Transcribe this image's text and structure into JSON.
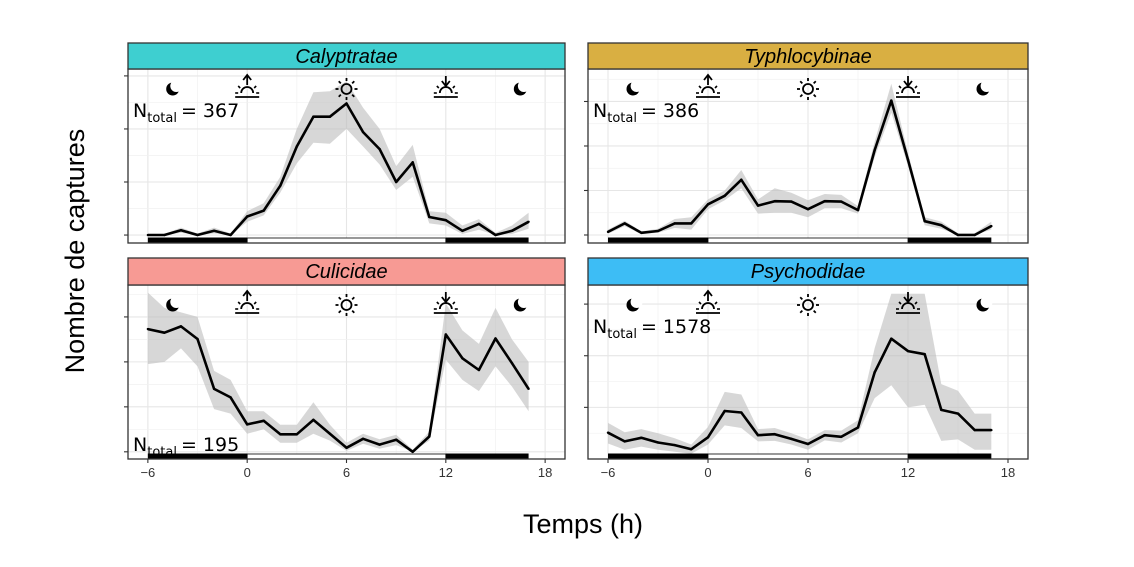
{
  "chart_data": {
    "type": "line",
    "layout": "facet-2x2",
    "xlabel": "Temps (h)",
    "ylabel": "Nombre de captures",
    "x": [
      -6,
      -5,
      -4,
      -3,
      -2,
      -1,
      0,
      1,
      2,
      3,
      4,
      5,
      6,
      7,
      8,
      9,
      10,
      11,
      12,
      13,
      14,
      15,
      16,
      17
    ],
    "xlim": [
      -7.2,
      19.2
    ],
    "xticks": [
      -6,
      0,
      6,
      12,
      18
    ],
    "xtick_labels": [
      "−6",
      "0",
      "6",
      "12",
      "18"
    ],
    "grid": true,
    "night_periods": [
      [
        -6,
        0
      ],
      [
        12,
        17
      ]
    ],
    "day_period": [
      0,
      12
    ],
    "icons": [
      {
        "name": "moon-icon",
        "hour": -4.5,
        "glyph": "☾"
      },
      {
        "name": "sunrise-icon",
        "hour": 0
      },
      {
        "name": "sun-icon",
        "hour": 6
      },
      {
        "name": "sunset-icon",
        "hour": 12
      },
      {
        "name": "moon-icon",
        "hour": 16.5,
        "glyph": "☾"
      }
    ],
    "panels": [
      {
        "title": "Calyptratae",
        "strip_color": "#3ECFD0",
        "n_label": "N",
        "n_sub": "total",
        "n_value": "= 367",
        "n_position": "top-left",
        "ylim": [
          -0.15,
          3.13
        ],
        "yticks": [
          0,
          1,
          2,
          3
        ],
        "values": [
          0,
          0,
          0.09,
          0,
          0.08,
          0,
          0.35,
          0.46,
          0.93,
          1.67,
          2.23,
          2.23,
          2.48,
          1.94,
          1.62,
          1.0,
          1.37,
          0.34,
          0.28,
          0.08,
          0.21,
          0,
          0.08,
          0.25
        ],
        "ci_upper": [
          0.02,
          0.02,
          0.14,
          0.03,
          0.14,
          0.03,
          0.45,
          0.6,
          1.1,
          2.0,
          2.69,
          2.71,
          2.9,
          2.4,
          2.0,
          1.3,
          1.7,
          0.45,
          0.42,
          0.18,
          0.3,
          0.04,
          0.18,
          0.42
        ],
        "ci_lower": [
          0,
          0,
          0.04,
          0,
          0.03,
          0,
          0.25,
          0.37,
          0.8,
          1.35,
          1.74,
          1.72,
          2.0,
          1.67,
          1.33,
          0.85,
          1.1,
          0.22,
          0.18,
          0.02,
          0.1,
          0,
          0.02,
          0.12
        ]
      },
      {
        "title": "Typhlocybinae",
        "strip_color": "#D9AF42",
        "n_label": "N",
        "n_sub": "total",
        "n_value": "= 386",
        "n_position": "top-left",
        "ylim": [
          -0.18,
          3.73
        ],
        "yticks": [
          0,
          1,
          2,
          3
        ],
        "values": [
          0.07,
          0.26,
          0.05,
          0.09,
          0.26,
          0.26,
          0.69,
          0.88,
          1.24,
          0.66,
          0.76,
          0.75,
          0.58,
          0.76,
          0.75,
          0.56,
          1.91,
          3.02,
          1.69,
          0.31,
          0.22,
          0,
          0,
          0.2
        ],
        "ci_upper": [
          0.12,
          0.32,
          0.08,
          0.14,
          0.36,
          0.4,
          0.8,
          1.0,
          1.46,
          0.8,
          1.05,
          0.95,
          0.78,
          0.92,
          0.9,
          0.65,
          2.1,
          3.4,
          1.85,
          0.4,
          0.3,
          0.04,
          0.04,
          0.3
        ],
        "ci_lower": [
          0.03,
          0.2,
          0.02,
          0.05,
          0.16,
          0.12,
          0.58,
          0.78,
          1.05,
          0.48,
          0.5,
          0.5,
          0.4,
          0.6,
          0.6,
          0.48,
          1.75,
          2.75,
          1.55,
          0.22,
          0.14,
          0,
          0,
          0.12
        ]
      },
      {
        "title": "Culicidae",
        "strip_color": "#F79A94",
        "n_label": "N",
        "n_sub": "total",
        "n_value": "= 195",
        "n_position": "bottom-left",
        "ylim": [
          -0.16,
          3.71
        ],
        "yticks": [
          0,
          1,
          2,
          3
        ],
        "values": [
          2.73,
          2.65,
          2.79,
          2.51,
          1.4,
          1.21,
          0.61,
          0.69,
          0.39,
          0.39,
          0.71,
          0.4,
          0.09,
          0.29,
          0.16,
          0.27,
          0,
          0.34,
          2.61,
          2.08,
          1.82,
          2.52,
          1.97,
          1.4
        ],
        "ci_upper": [
          3.54,
          3.2,
          3.1,
          3.0,
          1.8,
          1.6,
          0.9,
          0.9,
          0.6,
          0.6,
          1.1,
          0.6,
          0.2,
          0.4,
          0.28,
          0.38,
          0.05,
          0.45,
          3.3,
          2.7,
          2.4,
          3.2,
          2.5,
          2.0
        ],
        "ci_lower": [
          1.95,
          2.0,
          2.3,
          1.9,
          0.95,
          0.85,
          0.4,
          0.5,
          0.2,
          0.2,
          0.4,
          0.25,
          0.02,
          0.18,
          0.07,
          0.15,
          0,
          0.25,
          2.05,
          1.6,
          1.35,
          1.9,
          1.45,
          0.9
        ]
      },
      {
        "title": "Psychodidae",
        "strip_color": "#3DBDF5",
        "n_label": "N",
        "n_sub": "total",
        "n_value": "= 1578",
        "n_position": "top-left",
        "ylim": [
          0,
          3.37
        ],
        "yticks": [
          1,
          2,
          3
        ],
        "values": [
          0.51,
          0.34,
          0.41,
          0.32,
          0.27,
          0.19,
          0.42,
          0.93,
          0.9,
          0.46,
          0.48,
          0.39,
          0.29,
          0.46,
          0.43,
          0.61,
          1.68,
          2.33,
          2.09,
          2.03,
          0.95,
          0.88,
          0.56,
          0.56
        ],
        "ci_upper": [
          0.7,
          0.52,
          0.58,
          0.5,
          0.4,
          0.28,
          0.62,
          1.3,
          1.25,
          0.58,
          0.6,
          0.5,
          0.38,
          0.56,
          0.55,
          0.75,
          2.15,
          3.2,
          3.2,
          3.2,
          1.45,
          1.32,
          0.88,
          0.88
        ],
        "ci_lower": [
          0.3,
          0.18,
          0.24,
          0.18,
          0.14,
          0.1,
          0.28,
          0.65,
          0.6,
          0.34,
          0.35,
          0.28,
          0.18,
          0.36,
          0.32,
          0.5,
          1.18,
          1.43,
          1.0,
          1.05,
          0.35,
          0.38,
          0.18,
          0.18
        ]
      }
    ]
  }
}
